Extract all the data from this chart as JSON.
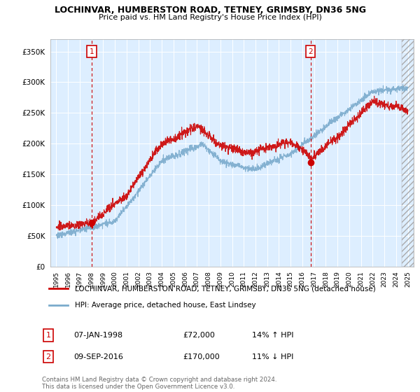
{
  "title": "LOCHINVAR, HUMBERSTON ROAD, TETNEY, GRIMSBY, DN36 5NG",
  "subtitle": "Price paid vs. HM Land Registry's House Price Index (HPI)",
  "legend_label_red": "LOCHINVAR, HUMBERSTON ROAD, TETNEY, GRIMSBY, DN36 5NG (detached house)",
  "legend_label_blue": "HPI: Average price, detached house, East Lindsey",
  "annotation1_date": "07-JAN-1998",
  "annotation1_price": "£72,000",
  "annotation1_hpi": "14% ↑ HPI",
  "annotation2_date": "09-SEP-2016",
  "annotation2_price": "£170,000",
  "annotation2_hpi": "11% ↓ HPI",
  "footnote": "Contains HM Land Registry data © Crown copyright and database right 2024.\nThis data is licensed under the Open Government Licence v3.0.",
  "ylim": [
    0,
    370000
  ],
  "yticks": [
    0,
    50000,
    100000,
    150000,
    200000,
    250000,
    300000,
    350000
  ],
  "red_color": "#cc0000",
  "blue_color": "#7aabcc",
  "bg_color": "#ddeeff",
  "marker1_x": 1998.04,
  "marker1_y": 72000,
  "marker2_x": 2016.69,
  "marker2_y": 170000,
  "vline1_x": 1998.04,
  "vline2_x": 2016.69,
  "xmin": 1995,
  "xmax": 2025
}
